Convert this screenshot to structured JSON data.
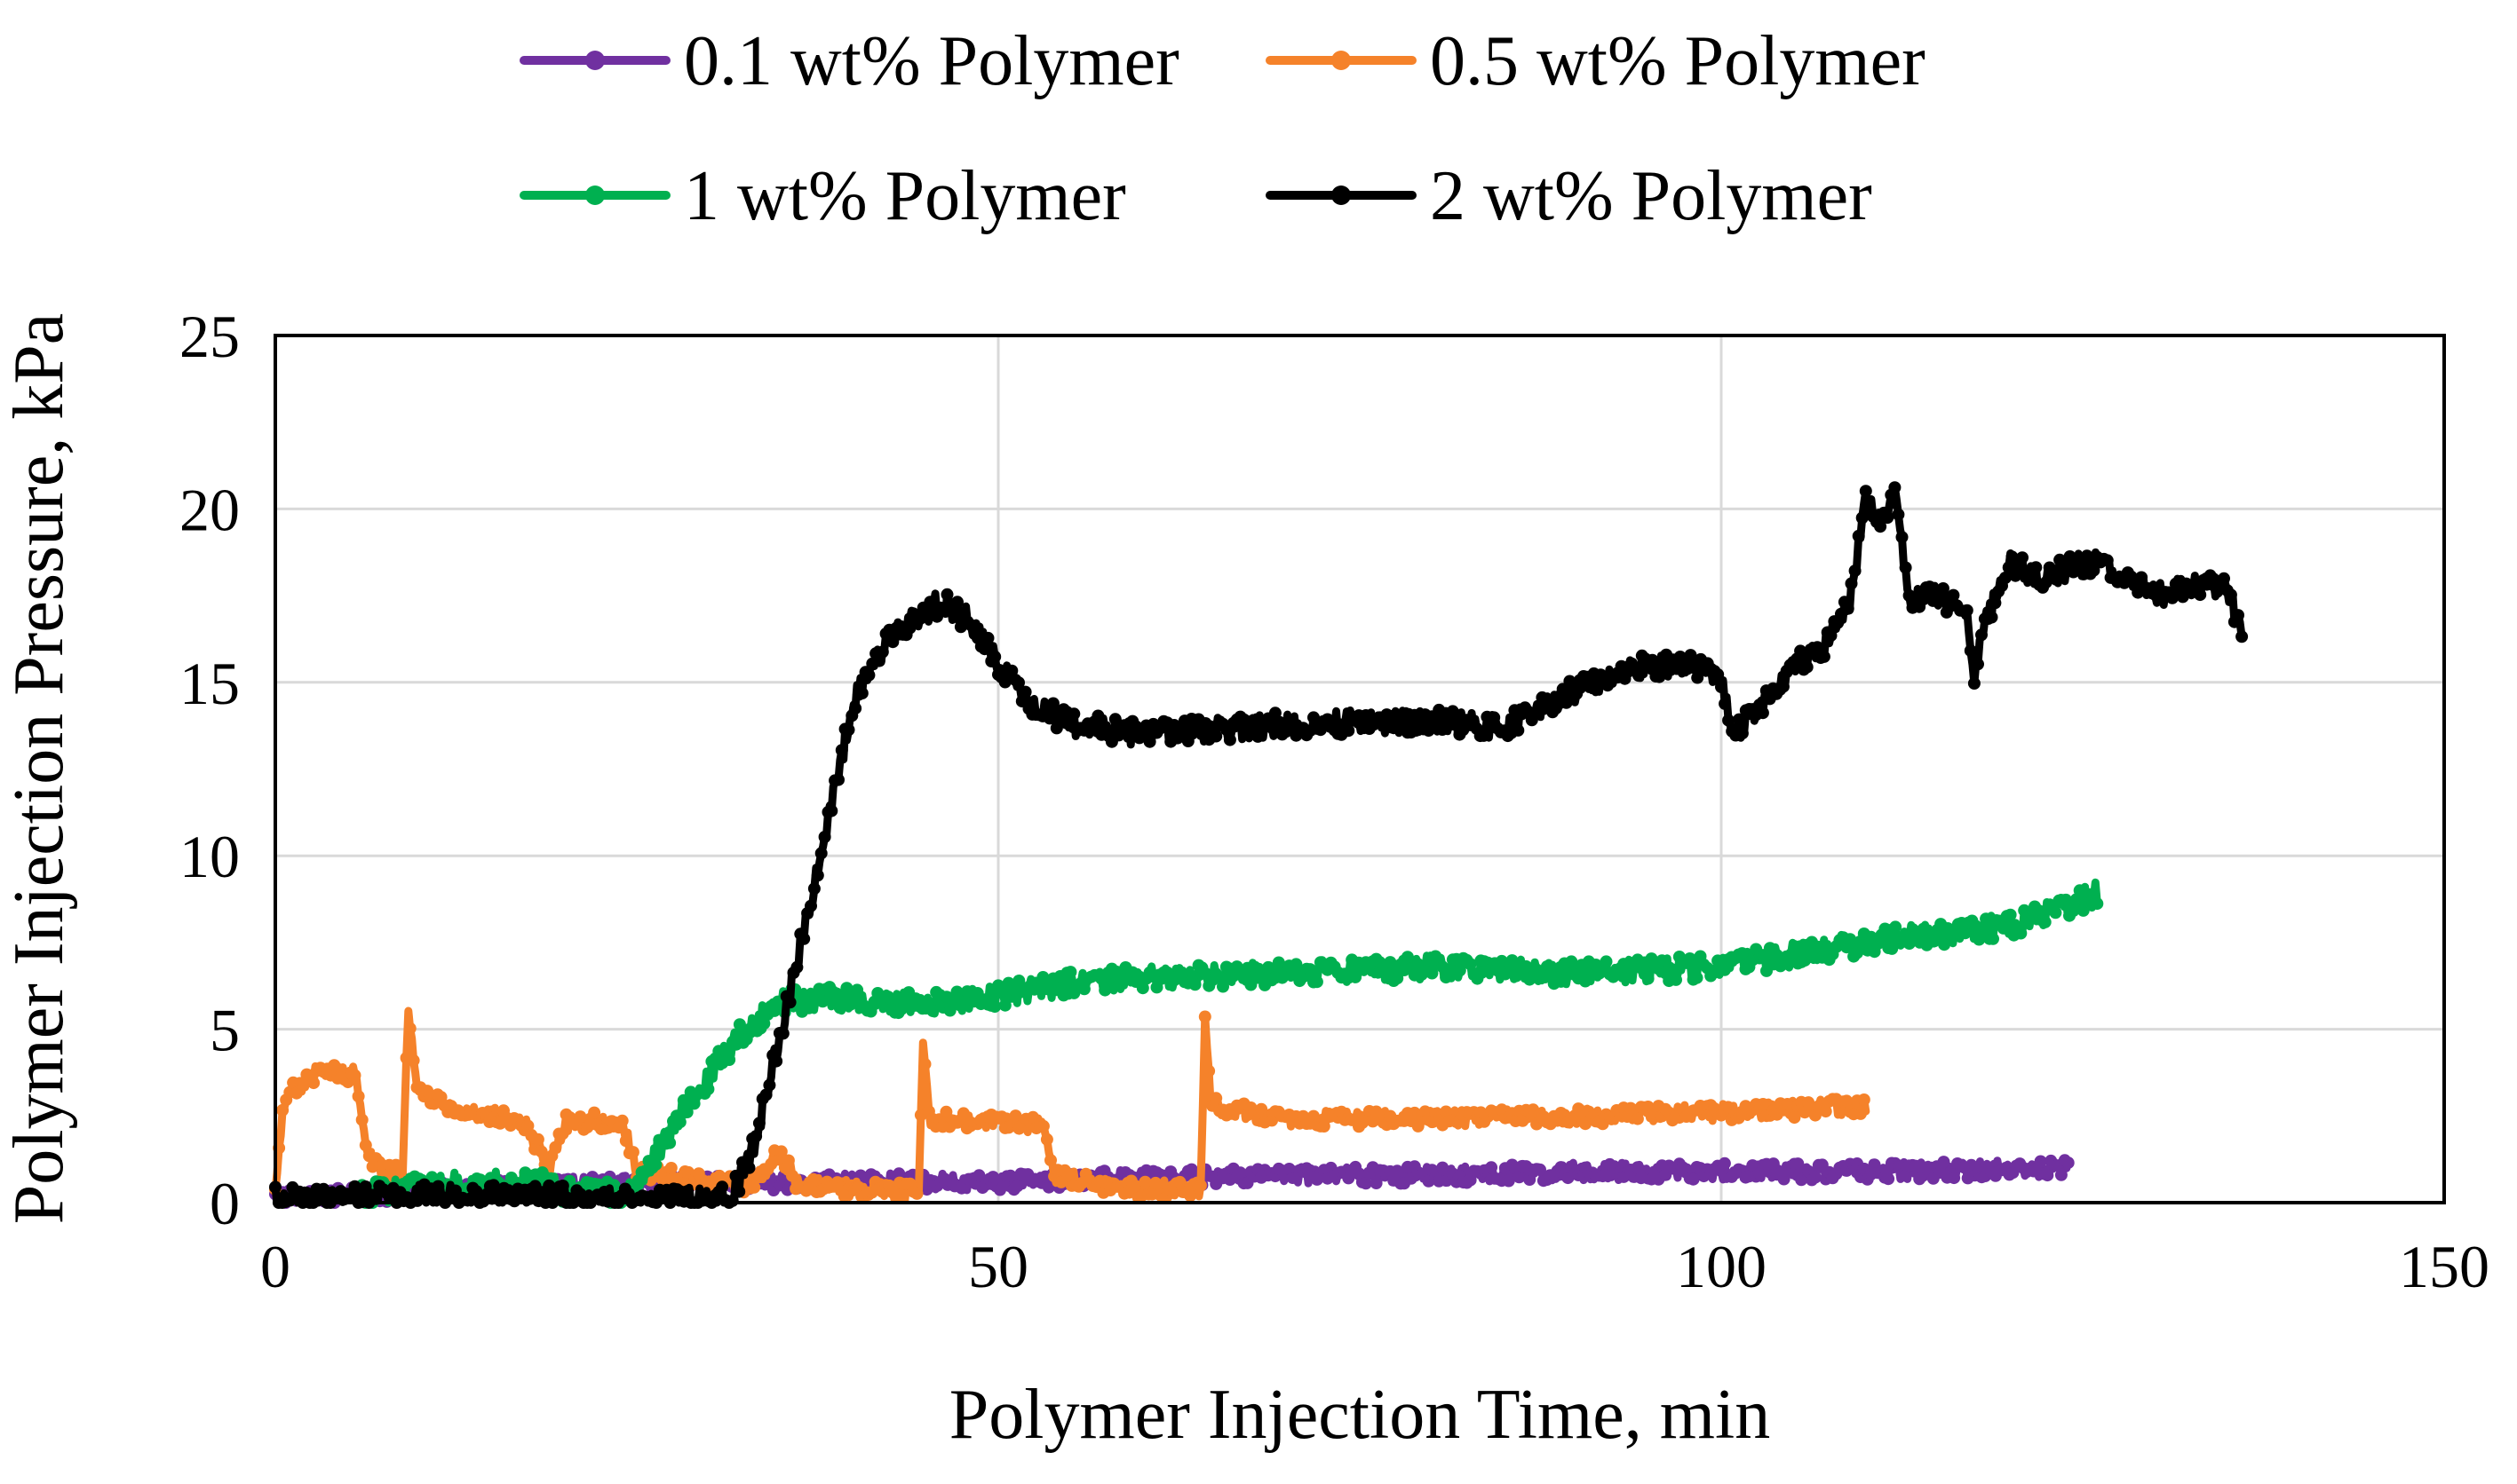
{
  "chart_data": {
    "type": "line",
    "title": "",
    "xlabel": "Polymer Injection Time, min",
    "ylabel": "Polymer Injection Pressure, kPa",
    "xlim": [
      0,
      150
    ],
    "ylim": [
      0,
      25
    ],
    "xticks": [
      0,
      50,
      100,
      150
    ],
    "yticks": [
      0,
      5,
      10,
      15,
      20,
      25
    ],
    "grid": true,
    "legend_position": "top",
    "series": [
      {
        "name": "0.1 wt% Polymer",
        "color": "#7030A0",
        "noise": 0.25,
        "points": [
          [
            0,
            0.1
          ],
          [
            10,
            0.3
          ],
          [
            20,
            0.5
          ],
          [
            30,
            0.6
          ],
          [
            40,
            0.6
          ],
          [
            50,
            0.6
          ],
          [
            60,
            0.7
          ],
          [
            70,
            0.8
          ],
          [
            80,
            0.8
          ],
          [
            90,
            0.9
          ],
          [
            100,
            0.9
          ],
          [
            110,
            0.9
          ],
          [
            124,
            1.0
          ]
        ]
      },
      {
        "name": "0.5 wt% Polymer",
        "color": "#F5822A",
        "noise": 0.25,
        "points": [
          [
            0,
            0.2
          ],
          [
            0.5,
            2.6
          ],
          [
            1,
            3.2
          ],
          [
            3,
            3.8
          ],
          [
            5.5,
            3.7
          ],
          [
            6.5,
            1.3
          ],
          [
            8,
            0.8
          ],
          [
            8.8,
            0.9
          ],
          [
            9.2,
            5.5
          ],
          [
            9.8,
            3.2
          ],
          [
            13,
            2.6
          ],
          [
            17,
            2.4
          ],
          [
            19,
            1.0
          ],
          [
            20,
            2.3
          ],
          [
            24,
            2.4
          ],
          [
            25,
            0.9
          ],
          [
            30,
            0.6
          ],
          [
            33,
            0.5
          ],
          [
            35,
            1.5
          ],
          [
            36,
            0.5
          ],
          [
            44.5,
            0.3
          ],
          [
            44.8,
            4.8
          ],
          [
            45.2,
            2.4
          ],
          [
            50,
            2.3
          ],
          [
            53,
            2.2
          ],
          [
            54,
            0.8
          ],
          [
            58,
            0.4
          ],
          [
            64,
            0.4
          ],
          [
            64.3,
            5.5
          ],
          [
            64.7,
            2.8
          ],
          [
            70,
            2.4
          ],
          [
            80,
            2.4
          ],
          [
            90,
            2.5
          ],
          [
            100,
            2.6
          ],
          [
            110,
            2.8
          ]
        ]
      },
      {
        "name": "1 wt% Polymer",
        "color": "#00B050",
        "noise": 0.35,
        "points": [
          [
            6,
            0.2
          ],
          [
            10,
            0.5
          ],
          [
            18,
            0.6
          ],
          [
            20,
            0.3
          ],
          [
            24.5,
            0.3
          ],
          [
            28,
            2.5
          ],
          [
            32,
            4.8
          ],
          [
            35,
            5.8
          ],
          [
            40,
            5.9
          ],
          [
            45,
            5.7
          ],
          [
            50,
            6.0
          ],
          [
            55,
            6.3
          ],
          [
            60,
            6.5
          ],
          [
            70,
            6.6
          ],
          [
            80,
            6.8
          ],
          [
            90,
            6.6
          ],
          [
            100,
            6.8
          ],
          [
            110,
            7.5
          ],
          [
            120,
            8.0
          ],
          [
            126,
            8.9
          ]
        ]
      },
      {
        "name": "2 wt% Polymer",
        "color": "#000000",
        "noise": 0.35,
        "points": [
          [
            0,
            0.1
          ],
          [
            5,
            0.1
          ],
          [
            6,
            0.2
          ],
          [
            31.5,
            0.1
          ],
          [
            33,
            1.5
          ],
          [
            35,
            5.0
          ],
          [
            38,
            10.5
          ],
          [
            40,
            14.5
          ],
          [
            42,
            16.0
          ],
          [
            44,
            16.8
          ],
          [
            46,
            17.3
          ],
          [
            48,
            16.8
          ],
          [
            50,
            15.5
          ],
          [
            52,
            14.5
          ],
          [
            55,
            13.8
          ],
          [
            60,
            13.5
          ],
          [
            70,
            13.8
          ],
          [
            80,
            13.9
          ],
          [
            85,
            13.7
          ],
          [
            90,
            14.8
          ],
          [
            95,
            15.5
          ],
          [
            98,
            15.5
          ],
          [
            100,
            15.0
          ],
          [
            101,
            13.5
          ],
          [
            103,
            14.5
          ],
          [
            105,
            15.5
          ],
          [
            107,
            16.0
          ],
          [
            109,
            17.5
          ],
          [
            110,
            20.5
          ],
          [
            111,
            19.5
          ],
          [
            112,
            20.5
          ],
          [
            113,
            17.5
          ],
          [
            115,
            17.5
          ],
          [
            117,
            17.0
          ],
          [
            117.5,
            14.8
          ],
          [
            118,
            16.5
          ],
          [
            120,
            18.5
          ],
          [
            122,
            18.0
          ],
          [
            124,
            18.3
          ],
          [
            126,
            18.5
          ],
          [
            128,
            18.0
          ],
          [
            130,
            17.5
          ],
          [
            133,
            17.8
          ],
          [
            135,
            17.8
          ],
          [
            136,
            16.3
          ]
        ]
      }
    ]
  }
}
